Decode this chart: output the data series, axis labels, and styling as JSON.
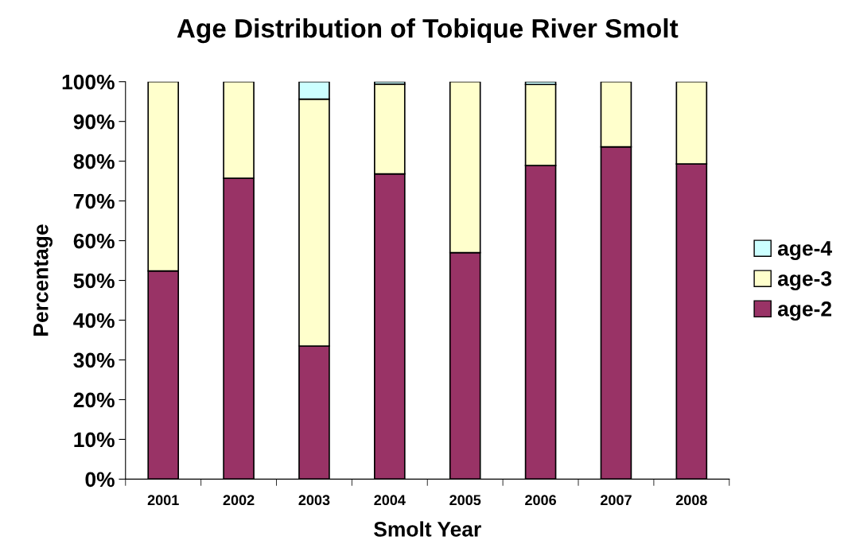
{
  "chart_data": {
    "type": "bar",
    "title": "Age Distribution of Tobique River Smolt",
    "xlabel": "Smolt Year",
    "ylabel": "Percentage",
    "categories": [
      "2001",
      "2002",
      "2003",
      "2004",
      "2005",
      "2006",
      "2007",
      "2008"
    ],
    "stacked": true,
    "series": [
      {
        "name": "age-2",
        "color": "#993366",
        "values": [
          52.4,
          75.7,
          33.5,
          76.8,
          57.0,
          78.9,
          83.6,
          79.3
        ]
      },
      {
        "name": "age-3",
        "color": "#ffffcc",
        "values": [
          47.6,
          24.3,
          62.1,
          22.6,
          43.0,
          20.4,
          16.4,
          20.7
        ]
      },
      {
        "name": "age-4",
        "color": "#ccffff",
        "values": [
          null,
          null,
          4.4,
          0.6,
          null,
          0.7,
          null,
          null
        ]
      }
    ],
    "ylim": [
      0,
      100
    ],
    "yticks": [
      {
        "value": 0,
        "label": "0%"
      },
      {
        "value": 10,
        "label": "10%"
      },
      {
        "value": 20,
        "label": "20%"
      },
      {
        "value": 30,
        "label": "30%"
      },
      {
        "value": 40,
        "label": "40%"
      },
      {
        "value": 50,
        "label": "50%"
      },
      {
        "value": 60,
        "label": "60%"
      },
      {
        "value": 70,
        "label": "70%"
      },
      {
        "value": 80,
        "label": "80%"
      },
      {
        "value": 90,
        "label": "90%"
      },
      {
        "value": 100,
        "label": "100%"
      }
    ],
    "grid": false,
    "legend": "right"
  }
}
